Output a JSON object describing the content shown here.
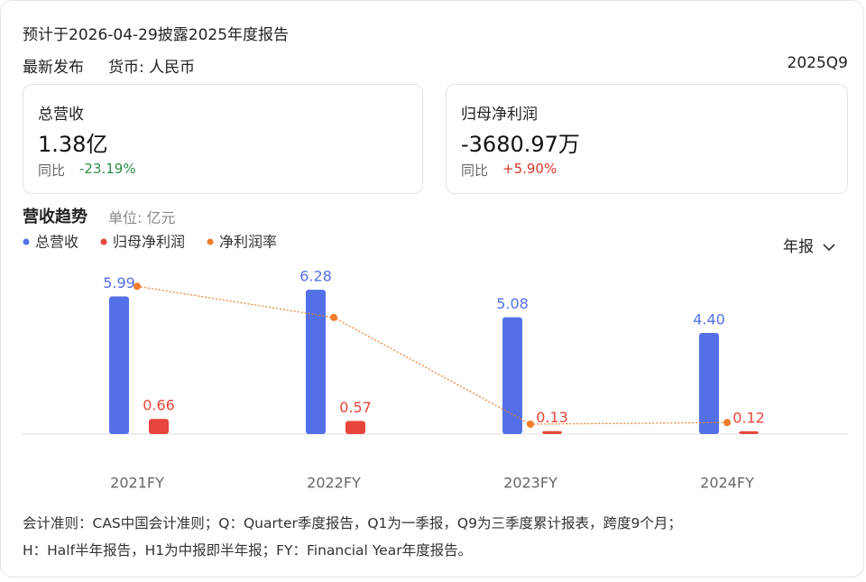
{
  "header": {
    "forecast": "预计于2026-04-29披露2025年度报告",
    "status": "最新发布",
    "currency": "货币: 人民币",
    "period": "2025Q9"
  },
  "cards": [
    {
      "label": "总营收",
      "value": "1.38亿",
      "change_label": "同比",
      "change": "-23.19%"
    },
    {
      "label": "归母净利润",
      "value": "-3680.97万",
      "change_label": "同比",
      "change": "+5.90%"
    }
  ],
  "chart_data": {
    "type": "bar",
    "title": "营收趋势",
    "subtitle": "单位: 亿元",
    "categories": [
      "2021FY",
      "2022FY",
      "2023FY",
      "2024FY"
    ],
    "series": [
      {
        "name": "总营收",
        "color": "#5470e8",
        "values": [
          5.99,
          6.28,
          5.08,
          4.4
        ],
        "value_labels": [
          "5.99",
          "6.28",
          "5.08",
          "4.40"
        ]
      },
      {
        "name": "归母净利润",
        "color": "#e8453c",
        "values": [
          0.66,
          0.57,
          0.13,
          0.12
        ]
      },
      {
        "name": "净利润率",
        "type": "line",
        "axis": "y2",
        "color": "#f07c2a",
        "values": [
          11.0,
          9.1,
          2.6,
          2.7
        ]
      }
    ],
    "ylim": [
      0,
      7.5
    ],
    "y2lim": [
      2,
      12.5
    ],
    "grid": false
  },
  "period_selector": "年报",
  "footnote": [
    "会计准则：CAS中国会计准则；Q：Quarter季度报告，Q1为一季报，Q9为三季度累计报表，跨度9个月；",
    "H：Half半年报告，H1为中报即半年报；FY：Financial Year年度报告。"
  ]
}
